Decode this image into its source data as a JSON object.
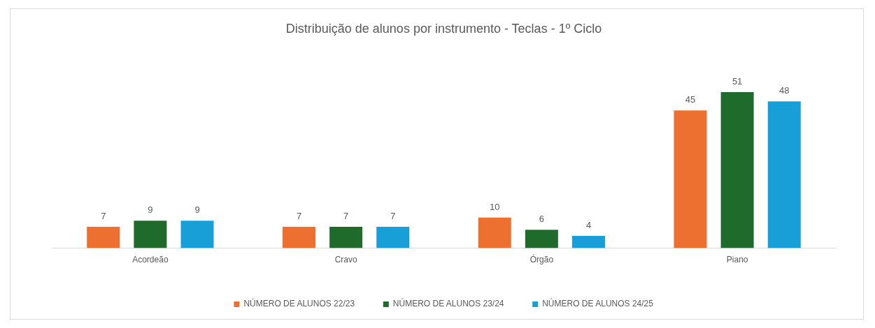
{
  "chart_data": {
    "type": "bar",
    "title": "Distribuição de alunos por instrumento - Teclas - 1º Ciclo",
    "categories": [
      "Acordeão",
      "Cravo",
      "Órgão",
      "Piano"
    ],
    "series": [
      {
        "name": "NÚMERO DE ALUNOS 22/23",
        "color": "#ed7031",
        "values": [
          7,
          7,
          10,
          45
        ]
      },
      {
        "name": "NÚMERO DE ALUNOS 23/24",
        "color": "#1e6b2b",
        "values": [
          9,
          7,
          6,
          51
        ]
      },
      {
        "name": "NÚMERO DE ALUNOS 24/25",
        "color": "#199fd8",
        "values": [
          9,
          7,
          4,
          48
        ]
      }
    ],
    "data_labels": true,
    "grid": false,
    "legend": "bottom",
    "tick_labels": "x"
  }
}
